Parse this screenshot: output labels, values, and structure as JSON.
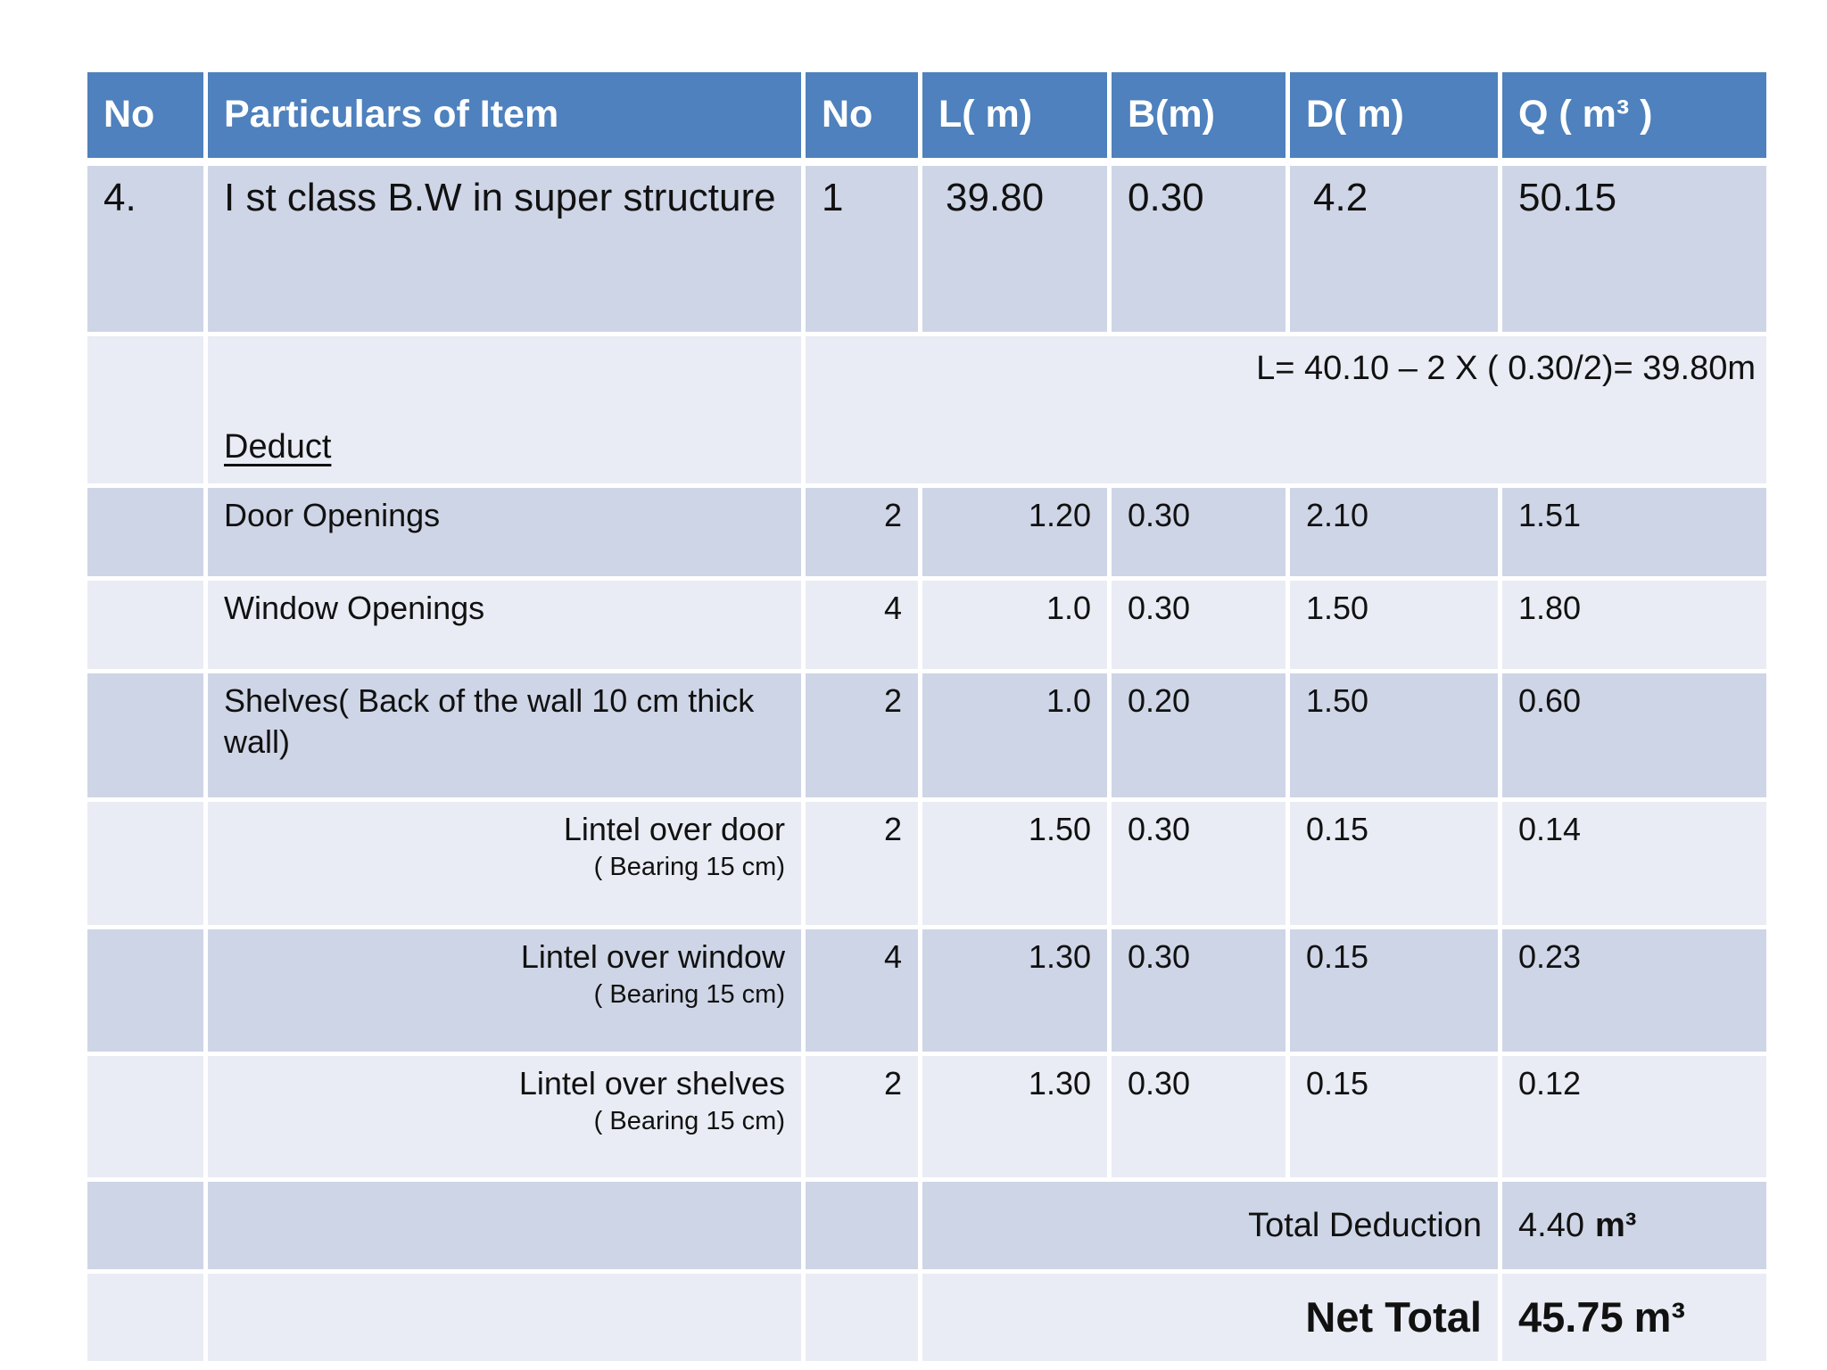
{
  "colors": {
    "slide-bg": "#FFFFFF",
    "header-bg": "#4E81BD",
    "header-text": "#FFFFFF",
    "band-dark": "#CED5E6",
    "band-light": "#E9ECF4",
    "text": "#111111"
  },
  "table": {
    "headers": [
      "No",
      "Particulars of Item",
      "No",
      "L( m)",
      "B(m)",
      "D( m)",
      "Q ( m³ )"
    ],
    "main_row": {
      "sno": "4.",
      "item": "I st class B.W in super structure",
      "no": "1",
      "l": "39.80",
      "b": "0.30",
      "d": "4.2",
      "q": "50.15"
    },
    "formula_row": {
      "deduct_label": "Deduct",
      "formula": "L= 40.10 – 2 X ( 0.30/2)= 39.80m"
    },
    "deductions": [
      {
        "item": "Door Openings",
        "note": "",
        "no": "2",
        "l": "1.20",
        "b": "0.30",
        "d": "2.10",
        "q": "1.51"
      },
      {
        "item": "Window Openings",
        "note": "",
        "no": "4",
        "l": "1.0",
        "b": "0.30",
        "d": "1.50",
        "q": "1.80"
      },
      {
        "item": "Shelves( Back of the wall 10 cm thick wall)",
        "note": "",
        "no": "2",
        "l": "1.0",
        "b": "0.20",
        "d": "1.50",
        "q": "0.60"
      },
      {
        "item": "Lintel over door",
        "note": "( Bearing 15 cm)",
        "no": "2",
        "l": "1.50",
        "b": "0.30",
        "d": "0.15",
        "q": "0.14"
      },
      {
        "item": "Lintel over window",
        "note": "( Bearing 15 cm)",
        "no": "4",
        "l": "1.30",
        "b": "0.30",
        "d": "0.15",
        "q": "0.23"
      },
      {
        "item": "Lintel over shelves",
        "note": "( Bearing 15 cm)",
        "no": "2",
        "l": "1.30",
        "b": "0.30",
        "d": "0.15",
        "q": "0.12"
      }
    ],
    "total_deduction": {
      "label": "Total Deduction",
      "value": "4.40",
      "unit": "m³"
    },
    "net_total": {
      "label": "Net Total",
      "value": "45.75",
      "unit": "m³"
    }
  }
}
